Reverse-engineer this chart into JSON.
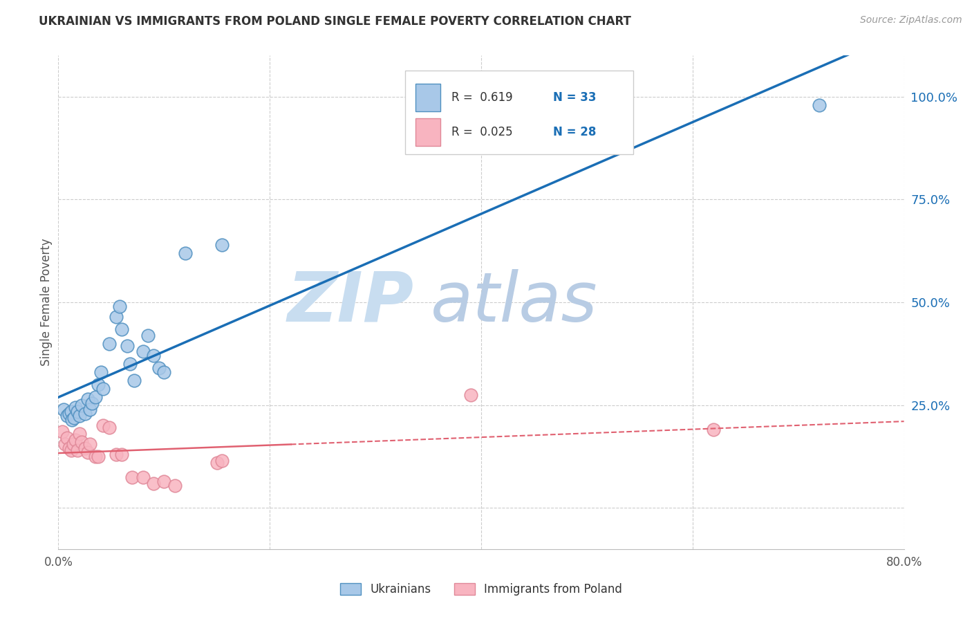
{
  "title": "UKRAINIAN VS IMMIGRANTS FROM POLAND SINGLE FEMALE POVERTY CORRELATION CHART",
  "source": "Source: ZipAtlas.com",
  "ylabel": "Single Female Poverty",
  "yticks": [
    0.0,
    0.25,
    0.5,
    0.75,
    1.0
  ],
  "ytick_labels": [
    "",
    "25.0%",
    "50.0%",
    "75.0%",
    "100.0%"
  ],
  "xlim": [
    0.0,
    0.8
  ],
  "ylim": [
    -0.1,
    1.1
  ],
  "legend_blue_r": "R =  0.619",
  "legend_blue_n": "N = 33",
  "legend_pink_r": "R =  0.025",
  "legend_pink_n": "N = 28",
  "legend1_label": "Ukrainians",
  "legend2_label": "Immigrants from Poland",
  "blue_scatter_x": [
    0.005,
    0.008,
    0.01,
    0.012,
    0.013,
    0.015,
    0.016,
    0.018,
    0.02,
    0.022,
    0.025,
    0.028,
    0.03,
    0.032,
    0.035,
    0.038,
    0.04,
    0.042,
    0.048,
    0.055,
    0.058,
    0.06,
    0.065,
    0.068,
    0.072,
    0.08,
    0.085,
    0.09,
    0.095,
    0.1,
    0.12,
    0.155,
    0.72
  ],
  "blue_scatter_y": [
    0.24,
    0.225,
    0.23,
    0.235,
    0.215,
    0.22,
    0.245,
    0.235,
    0.225,
    0.25,
    0.23,
    0.265,
    0.24,
    0.255,
    0.27,
    0.3,
    0.33,
    0.29,
    0.4,
    0.465,
    0.49,
    0.435,
    0.395,
    0.35,
    0.31,
    0.38,
    0.42,
    0.37,
    0.34,
    0.33,
    0.62,
    0.64,
    0.98
  ],
  "pink_scatter_x": [
    0.004,
    0.006,
    0.008,
    0.01,
    0.012,
    0.014,
    0.016,
    0.018,
    0.02,
    0.022,
    0.025,
    0.028,
    0.03,
    0.035,
    0.038,
    0.042,
    0.048,
    0.055,
    0.06,
    0.07,
    0.08,
    0.09,
    0.1,
    0.11,
    0.15,
    0.155,
    0.39,
    0.62
  ],
  "pink_scatter_y": [
    0.185,
    0.155,
    0.17,
    0.145,
    0.14,
    0.155,
    0.165,
    0.14,
    0.18,
    0.16,
    0.145,
    0.135,
    0.155,
    0.125,
    0.125,
    0.2,
    0.195,
    0.13,
    0.13,
    0.075,
    0.075,
    0.06,
    0.065,
    0.055,
    0.11,
    0.115,
    0.275,
    0.19
  ],
  "blue_color": "#a8c8e8",
  "pink_color": "#f8b4c0",
  "blue_edge_color": "#5090c0",
  "pink_edge_color": "#e08898",
  "blue_line_color": "#1a6eb5",
  "pink_line_color": "#e06070",
  "background_color": "#ffffff",
  "grid_color": "#cccccc",
  "title_color": "#333333",
  "axis_label_color": "#1a6eb5",
  "watermark_zip_color": "#c8ddf0",
  "watermark_atlas_color": "#b8cce4"
}
